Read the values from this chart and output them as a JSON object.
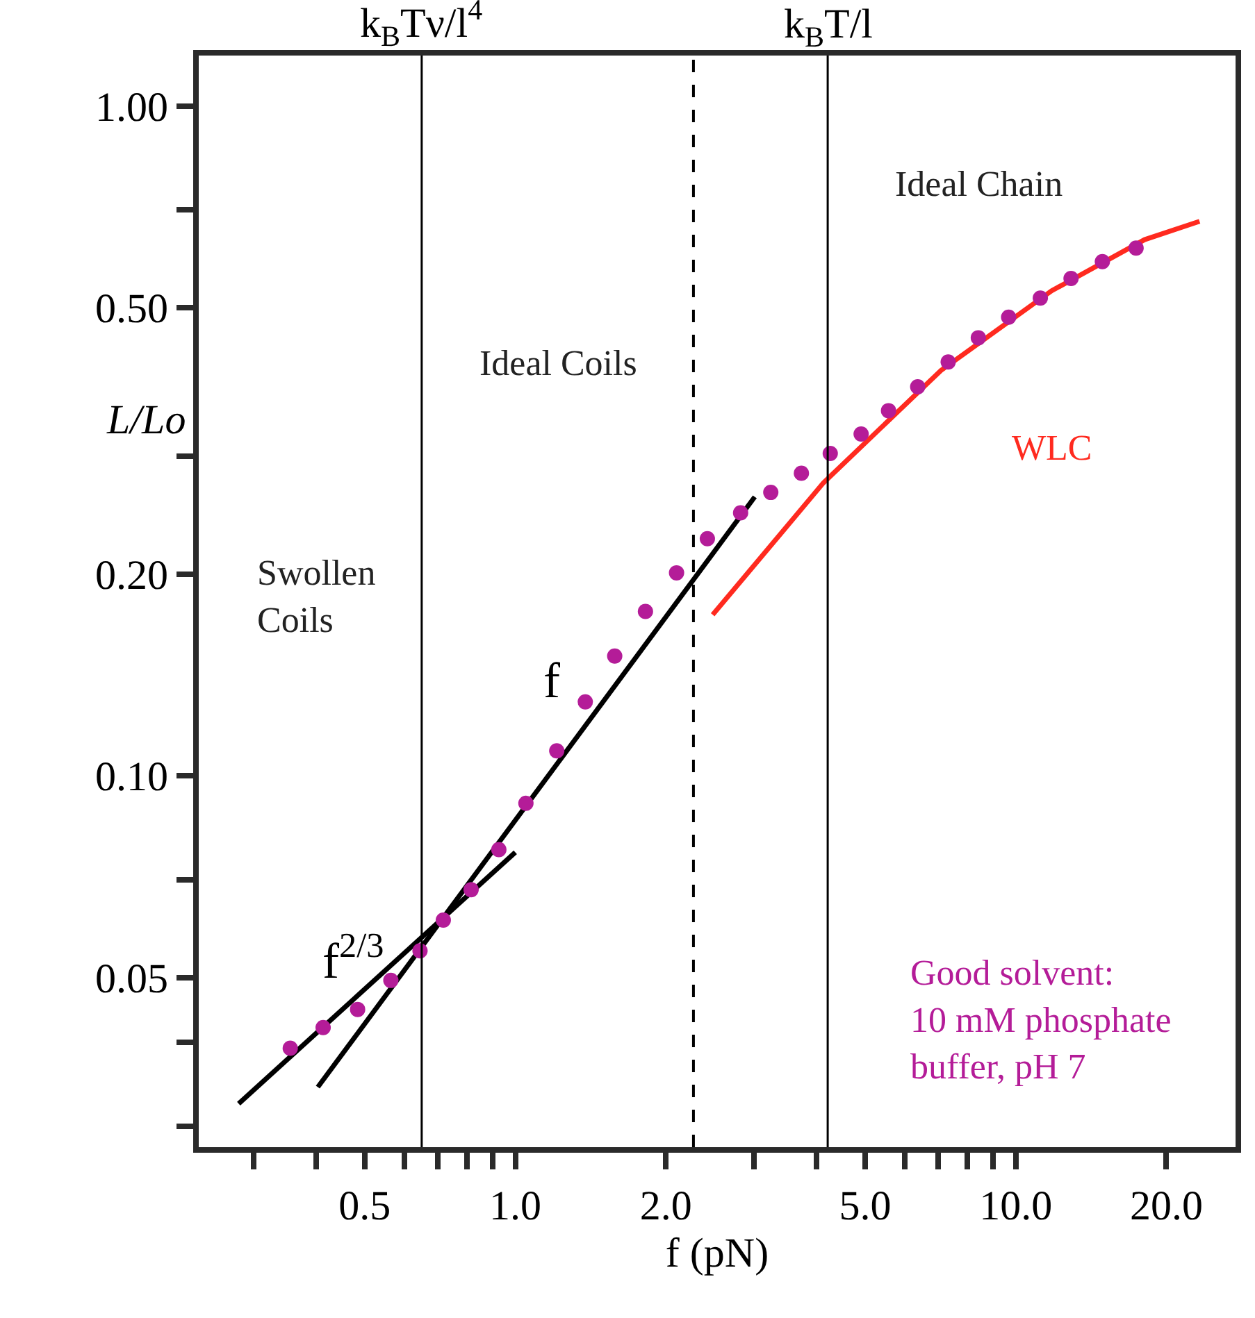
{
  "chart_data": {
    "type": "scatter",
    "xlabel": "f (pN)",
    "ylabel": "L/Lo",
    "log": "xy",
    "marker": "circle",
    "xlim": [
      0.233,
      27.5
    ],
    "ylim": [
      0.0279,
      1.19
    ],
    "xticks": [
      {
        "value": 0.3,
        "label": null
      },
      {
        "value": 0.4,
        "label": null
      },
      0.5,
      {
        "value": 0.6,
        "label": null
      },
      {
        "value": 0.7,
        "label": null
      },
      {
        "value": 0.8,
        "label": null
      },
      {
        "value": 0.9,
        "label": null
      },
      {
        "value": 1,
        "label": "1.0"
      },
      {
        "value": 2,
        "label": "2.0"
      },
      {
        "value": 3,
        "label": null
      },
      {
        "value": 4,
        "label": null
      },
      {
        "value": 5,
        "label": "5.0"
      },
      {
        "value": 6,
        "label": null
      },
      {
        "value": 7,
        "label": null
      },
      {
        "value": 8,
        "label": null
      },
      {
        "value": 9,
        "label": null
      },
      {
        "value": 10,
        "label": "10.0"
      },
      {
        "value": 20,
        "label": "20.0"
      }
    ],
    "yticks": [
      {
        "value": 0.03,
        "label": null
      },
      {
        "value": 0.04,
        "label": null
      },
      0.05,
      {
        "value": 0.07,
        "label": null
      },
      {
        "value": 0.1,
        "label": "0.10"
      },
      {
        "value": 0.2,
        "label": "0.20"
      },
      {
        "value": 0.3,
        "label": null
      },
      {
        "value": 0.5,
        "label": "0.50"
      },
      {
        "value": 0.7,
        "label": null
      },
      {
        "value": 1,
        "label": "1.00"
      }
    ],
    "series": [
      {
        "color": "#b41c98",
        "x": [
          0.355,
          0.413,
          0.484,
          0.564,
          0.645,
          0.718,
          0.816,
          0.927,
          1.05,
          1.21,
          1.38,
          1.58,
          1.82,
          2.1,
          2.42,
          2.82,
          3.24,
          3.73,
          4.26,
          4.91,
          5.57,
          6.37,
          7.33,
          8.42,
          9.68,
          11.2,
          12.9,
          14.9,
          17.4
        ],
        "values": [
          0.0392,
          0.0421,
          0.0448,
          0.0495,
          0.0548,
          0.0609,
          0.0676,
          0.0776,
          0.091,
          0.109,
          0.129,
          0.151,
          0.176,
          0.201,
          0.226,
          0.247,
          0.265,
          0.283,
          0.303,
          0.324,
          0.351,
          0.381,
          0.415,
          0.451,
          0.484,
          0.517,
          0.553,
          0.586,
          0.614
        ]
      },
      {
        "type": "line",
        "color": "#000000",
        "marker": "none",
        "x": [
          0.28,
          1.0
        ],
        "values": [
          0.0324,
          0.0769
        ]
      },
      {
        "type": "line",
        "color": "#000000",
        "marker": "none",
        "x": [
          0.403,
          3.01
        ],
        "values": [
          0.0343,
          0.261
        ]
      },
      {
        "type": "line",
        "color": "#ff2a1f",
        "marker": "none",
        "x": [
          2.48,
          4.13,
          7.09,
          11.8,
          18.1,
          23.3
        ],
        "values": [
          0.174,
          0.274,
          0.403,
          0.53,
          0.632,
          0.673
        ]
      }
    ],
    "ref_lines": [
      {
        "axis": "x",
        "value": 0.65,
        "label": "k$_{B}$Tν/l$^{4}$",
        "line_style": "solid"
      },
      {
        "axis": "x",
        "value": 2.27,
        "label": null,
        "line_style": "dashed"
      },
      {
        "axis": "x",
        "value": 4.21,
        "label": "k$_{B}$T/l",
        "line_style": "solid"
      }
    ],
    "annotations": [
      "Ideal Chain",
      "Ideal Coils",
      "Swollen\nCoils",
      "WLC",
      "f",
      "f$^{2/3}$",
      "Good solvent:\n10 mM phosphate\nbuffer, pH 7"
    ]
  }
}
